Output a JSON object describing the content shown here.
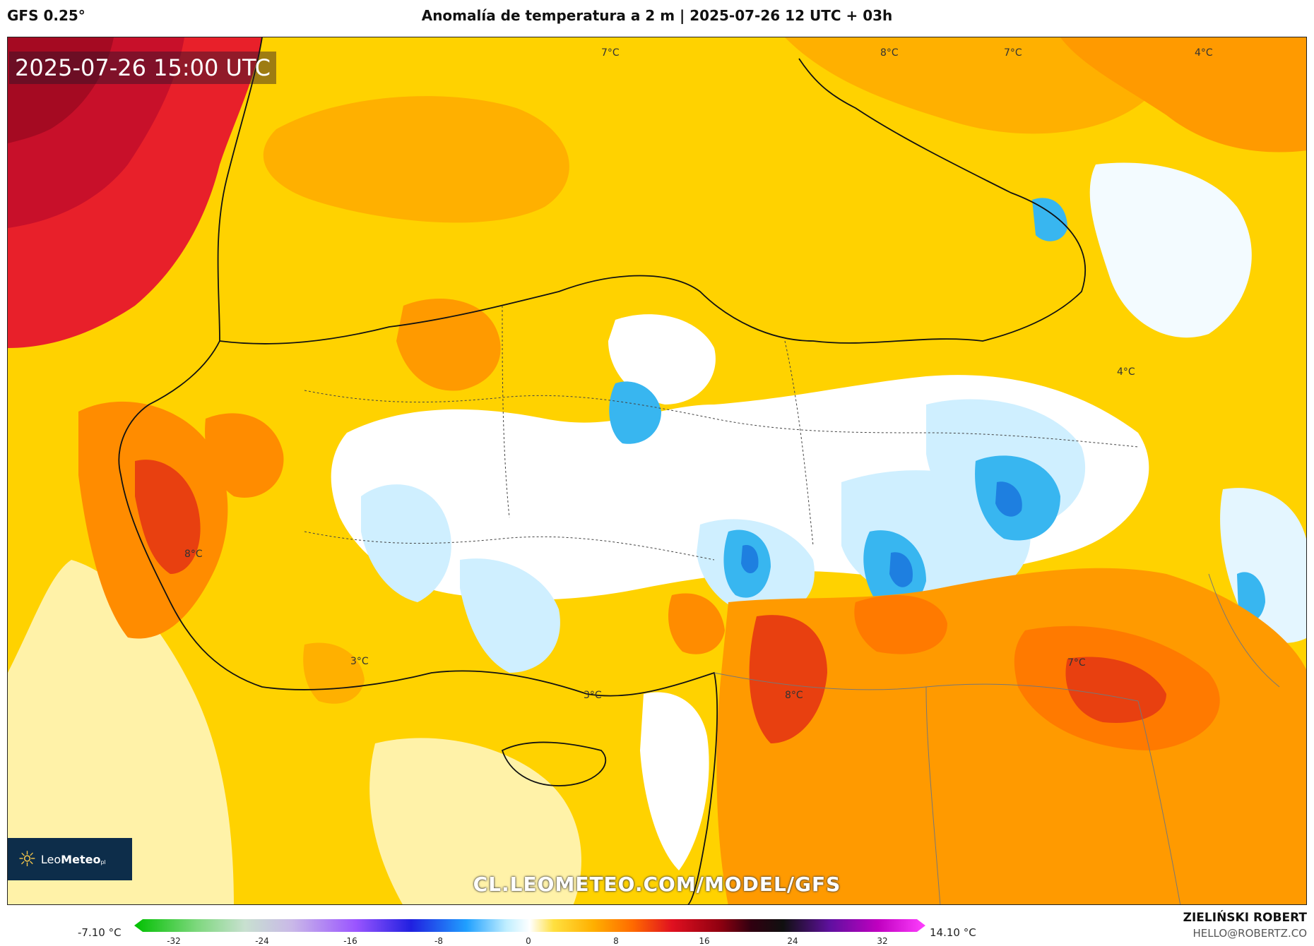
{
  "header": {
    "model": "GFS 0.25°",
    "title": "Anomalía de temperatura a 2 m | 2025-07-26 12 UTC + 03h"
  },
  "map": {
    "timestamp": "2025-07-26 15:00 UTC",
    "watermark": "CL.LEOMETEO.COM/MODEL/GFS",
    "logo": {
      "brand_light": "Leo",
      "brand_bold": "Meteo",
      "suffix": "pl"
    },
    "labels": [
      "7°C",
      "8°C",
      "7°C",
      "4°C",
      "4°C",
      "8°C",
      "3°C",
      "3°C",
      "8°C",
      "7°C"
    ],
    "colors": {
      "base": "#ffd200",
      "light_yellow": "#fff2a8",
      "orange": "#ffb000",
      "dark_orange": "#ff8c00",
      "red": "#e8202a",
      "dark_red": "#b30000",
      "white": "#ffffff",
      "light_blue": "#cfefff",
      "blue": "#38b6f0",
      "deep_blue": "#1e7fe0"
    }
  },
  "legend": {
    "min_label": "-7.10 °C",
    "max_label": "14.10 °C",
    "ticks": [
      "-32",
      "-24",
      "-16",
      "-8",
      "0",
      "8",
      "16",
      "24",
      "32"
    ]
  },
  "credits": {
    "author": "ZIELIŃSKI ROBERT",
    "email": "HELLO@ROBERTZ.CO"
  }
}
